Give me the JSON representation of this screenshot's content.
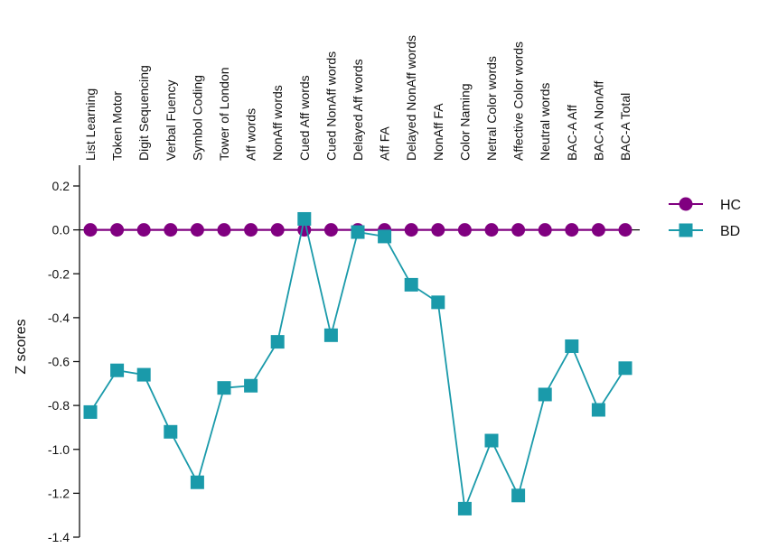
{
  "chart_data": {
    "type": "line",
    "title": "",
    "xlabel": "",
    "ylabel": "Z scores",
    "ylim": [
      -1.4,
      0.2
    ],
    "yticks": [
      "0.2",
      "0.0",
      "-0.2",
      "-0.4",
      "-0.6",
      "-0.8",
      "-1.0",
      "-1.2",
      "-1.4"
    ],
    "ytick_values": [
      0.2,
      0.0,
      -0.2,
      -0.4,
      -0.6,
      -0.8,
      -1.0,
      -1.2,
      -1.4
    ],
    "categories": [
      "List Learning",
      "Token Motor",
      "Digit Sequencing",
      "Verbal Fuency",
      "Symbol Coding",
      "Tower of London",
      "Aff words",
      "NonAff words",
      "Cued Aff words",
      "Cued NonAff words",
      "Delayed Aff words",
      "Aff FA",
      "Delayed NonAff words",
      "NonAff FA",
      "Color Naming",
      "Netral Color words",
      "Affective Color words",
      "Neutral words",
      "BAC-A Aff",
      "BAC-A NonAff",
      "BAC-A Total"
    ],
    "series": [
      {
        "name": "HC",
        "color": "#800080",
        "marker": "circle",
        "values": [
          0,
          0,
          0,
          0,
          0,
          0,
          0,
          0,
          0,
          0,
          0,
          0,
          0,
          0,
          0,
          0,
          0,
          0,
          0,
          0,
          0
        ]
      },
      {
        "name": "BD",
        "color": "#1a9aaa",
        "marker": "square",
        "values": [
          -0.83,
          -0.64,
          -0.66,
          -0.92,
          -1.15,
          -0.72,
          -0.71,
          -0.51,
          0.05,
          -0.48,
          -0.01,
          -0.03,
          -0.25,
          -0.33,
          -1.27,
          -0.96,
          -1.21,
          -0.75,
          -0.53,
          -0.82,
          -0.63
        ]
      }
    ],
    "grid": false,
    "legend_position": "right"
  }
}
